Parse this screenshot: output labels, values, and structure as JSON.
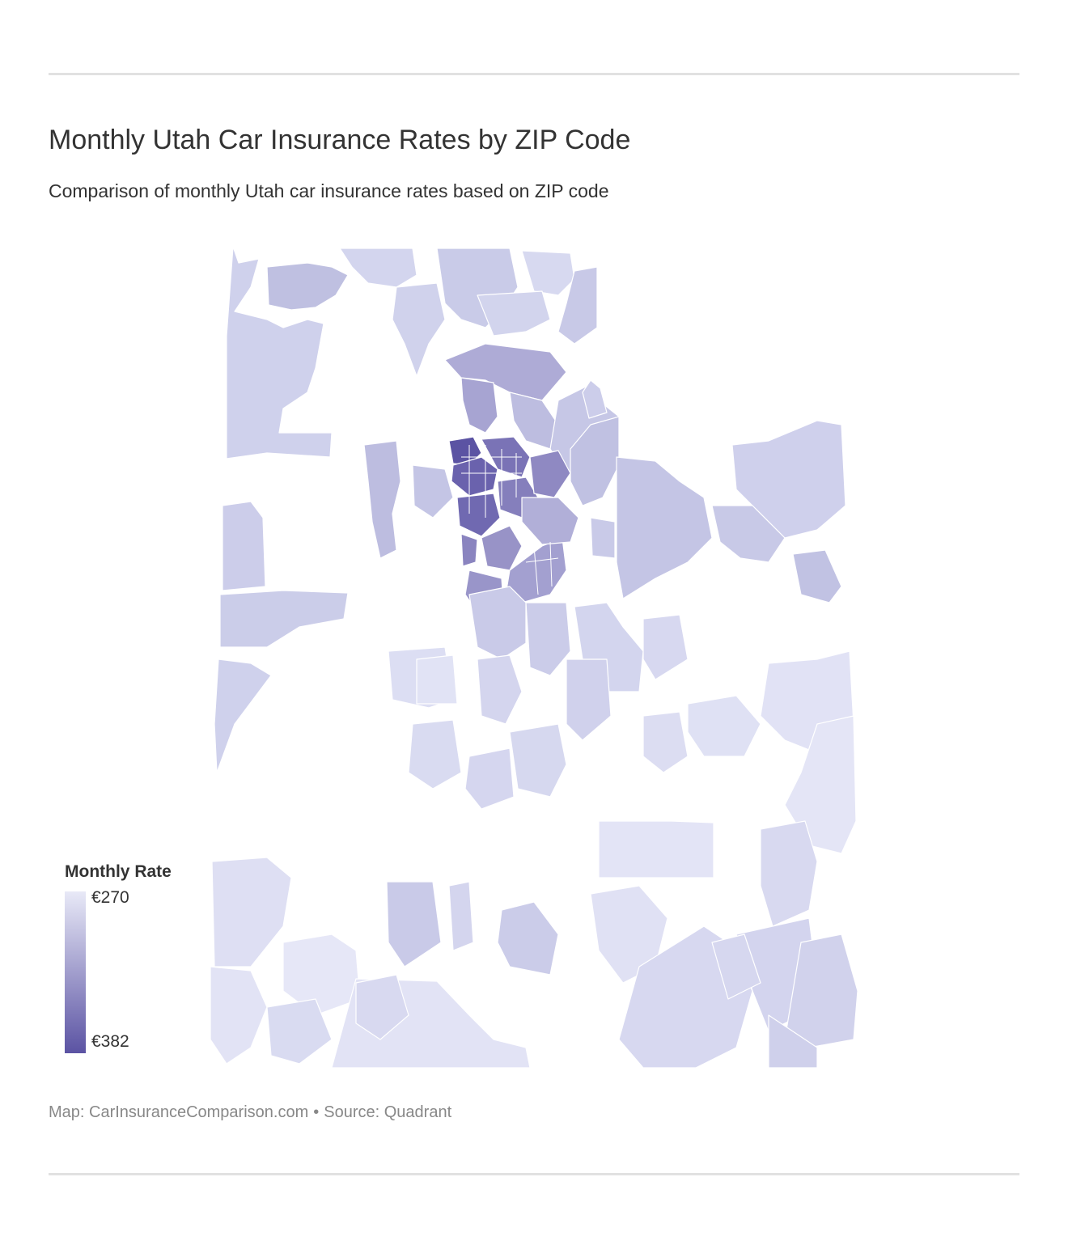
{
  "title": "Monthly Utah Car Insurance Rates by ZIP Code",
  "subtitle": "Comparison of monthly Utah car insurance rates based on ZIP code",
  "legend": {
    "title": "Monthly Rate",
    "min_label": "€270",
    "max_label": "€382",
    "min_value": 270,
    "max_value": 382,
    "color_low": "#e8e9f7",
    "color_high": "#5b53a3"
  },
  "footer": {
    "map_credit": "Map: CarInsuranceComparison.com",
    "separator": "•",
    "source": "Source: Quadrant"
  },
  "colors": {
    "rule": "#e1e1e1",
    "title": "#333333",
    "footer": "#888888",
    "region_stroke": "#ffffff"
  },
  "map_data": {
    "region": "Utah",
    "unit": "ZIP code",
    "scale": "continuous",
    "range": [
      270,
      382
    ]
  }
}
